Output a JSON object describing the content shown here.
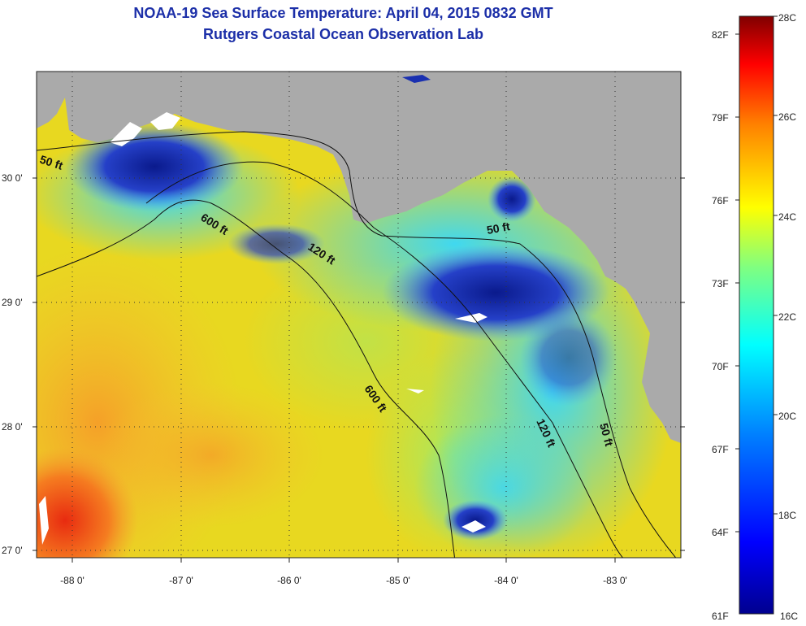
{
  "title": "NOAA-19 Sea Surface Temperature:  April 04, 2015 0832 GMT",
  "subtitle": "Rutgers Coastal Ocean Observation Lab",
  "axes": {
    "x_ticks": [
      "-88 0'",
      "-87 0'",
      "-86 0'",
      "-85 0'",
      "-84 0'",
      "-83 0'"
    ],
    "y_ticks": [
      "30 0'",
      "29 0'",
      "28 0'",
      "27 0'"
    ]
  },
  "contours": [
    {
      "label": "50 ft"
    },
    {
      "label": "600 ft"
    },
    {
      "label": "120 ft"
    },
    {
      "label": "50 ft"
    },
    {
      "label": "600 ft"
    },
    {
      "label": "120 ft"
    },
    {
      "label": "50 ft"
    }
  ],
  "colorbar": {
    "fahrenheit": [
      "82F",
      "79F",
      "76F",
      "73F",
      "70F",
      "67F",
      "64F",
      "61F"
    ],
    "celsius": [
      "28C",
      "26C",
      "24C",
      "22C",
      "20C",
      "18C",
      "16C"
    ]
  },
  "colors": {
    "land": "#aaaaaa",
    "title": "#1c2fa8",
    "warm": "#e82b10",
    "cold": "#0a1a8c"
  }
}
